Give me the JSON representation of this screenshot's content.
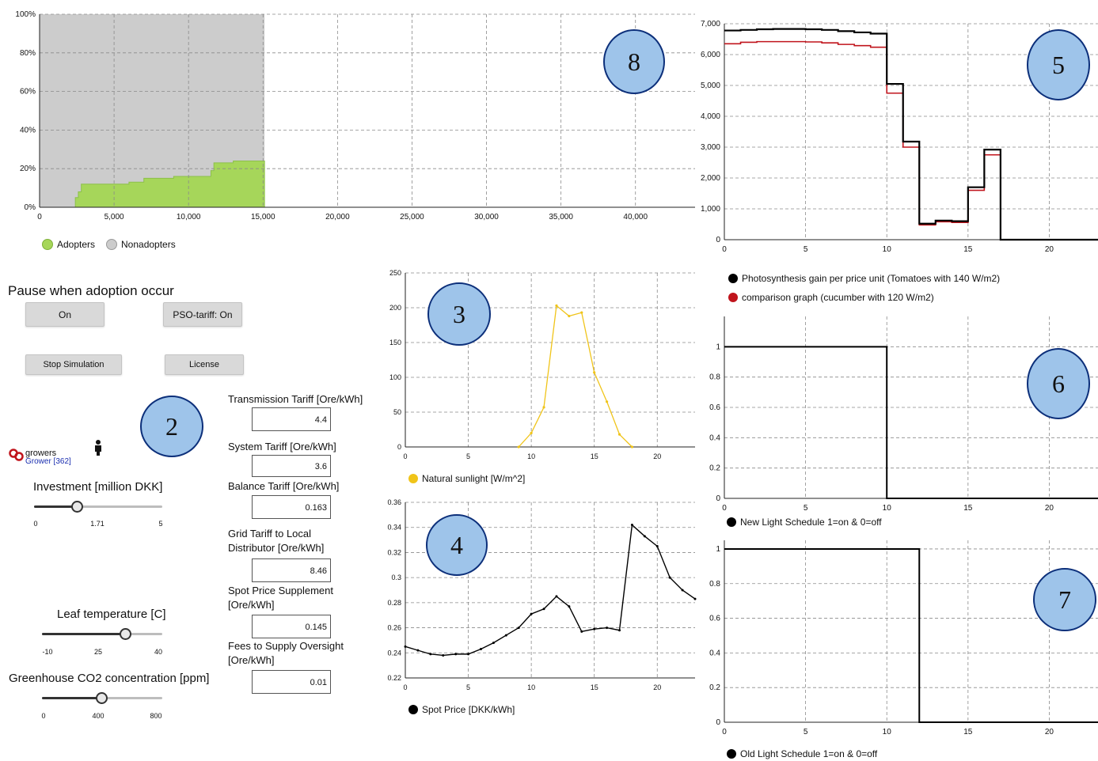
{
  "controls": {
    "pause_label": "Pause when adoption occur",
    "on_button": "On",
    "pso_button": "PSO-tariff: On",
    "stop_button": "Stop Simulation",
    "license_button": "License",
    "growers_label": "growers",
    "grower_label": "Grower [362]"
  },
  "sliders": {
    "investment": {
      "title": "Investment [million DKK]",
      "min": "0",
      "value": "1.71",
      "max": "5",
      "fraction": 0.342
    },
    "leaf": {
      "title": "Leaf temperature [C]",
      "min": "-10",
      "mid": "25",
      "max": "40",
      "fraction": 0.7
    },
    "co2": {
      "title": "Greenhouse CO2 concentration [ppm]",
      "min": "0",
      "mid": "400",
      "max": "800",
      "fraction": 0.5
    }
  },
  "fields": [
    {
      "label": "Transmission Tariff [Ore/kWh]",
      "value": "4.4"
    },
    {
      "label": "System Tariff [Ore/kWh]",
      "value": "3.6"
    },
    {
      "label": "Balance Tariff [Ore/kWh]",
      "value": "0.163"
    },
    {
      "label": "Grid Tariff to Local Distributor [Ore/kWh]",
      "value": "8.46"
    },
    {
      "label": "Spot Price Supplement [Ore/kWh]",
      "value": "0.145"
    },
    {
      "label": "Fees to Supply Oversight [Ore/kWh]",
      "value": "0.01"
    }
  ],
  "markers": [
    "8",
    "5",
    "3",
    "2",
    "6",
    "4",
    "7"
  ],
  "colors": {
    "adopters": "#a6d65a",
    "nonadopters": "#cccccc",
    "sunlight": "#f0c419",
    "red": "#c0141c",
    "bubble": "#9ec4ea",
    "bubble_border": "#0c2f7a"
  },
  "chart_data": [
    {
      "id": "adoption",
      "type": "area",
      "x_ticks": [
        "0",
        "5,000",
        "10,000",
        "15,000",
        "20,000",
        "25,000",
        "30,000",
        "35,000",
        "40,000"
      ],
      "y_ticks": [
        "0%",
        "20%",
        "40%",
        "60%",
        "80%",
        "100%"
      ],
      "xlim": [
        0,
        44000
      ],
      "ylim": [
        0,
        100
      ],
      "grid": true,
      "legend": [
        {
          "name": "Adopters",
          "color": "#a6d65a"
        },
        {
          "name": "Nonadopters",
          "color": "#cccccc"
        }
      ],
      "adopters_x": [
        2400,
        2600,
        2800,
        5000,
        6000,
        6200,
        7000,
        8500,
        9000,
        10000,
        11000,
        11500,
        11700,
        13000,
        15100
      ],
      "adopters_y": [
        5,
        8,
        12,
        12,
        13,
        13,
        15,
        15,
        16,
        16,
        16,
        19,
        23,
        24,
        24
      ],
      "nonadopters_end_x": 15100
    },
    {
      "id": "photosynthesis",
      "type": "line",
      "x_ticks": [
        "0",
        "5",
        "10",
        "15",
        "20"
      ],
      "y_ticks": [
        "0",
        "1,000",
        "2,000",
        "3,000",
        "4,000",
        "5,000",
        "6,000",
        "7,000"
      ],
      "xlim": [
        0,
        23
      ],
      "ylim": [
        0,
        7000
      ],
      "grid": true,
      "series": [
        {
          "name": "Photosynthesis gain per price unit (Tomatoes with 140 W/m2)",
          "color": "#000000",
          "x": [
            0,
            1,
            2,
            3,
            4,
            5,
            6,
            7,
            8,
            9,
            10,
            11,
            12,
            13,
            14,
            15,
            16,
            17,
            23
          ],
          "values": [
            6780,
            6800,
            6820,
            6830,
            6830,
            6820,
            6800,
            6760,
            6720,
            6680,
            5050,
            3180,
            520,
            620,
            600,
            1700,
            2920,
            0,
            0
          ]
        },
        {
          "name": "comparison graph (cucumber with 120 W/m2)",
          "color": "#c0141c",
          "x": [
            0,
            1,
            2,
            3,
            4,
            5,
            6,
            7,
            8,
            9,
            10,
            11,
            12,
            13,
            14,
            15,
            16,
            17,
            23
          ],
          "values": [
            6350,
            6400,
            6420,
            6420,
            6420,
            6410,
            6380,
            6330,
            6290,
            6240,
            4750,
            3000,
            480,
            580,
            560,
            1600,
            2750,
            0,
            0
          ]
        }
      ]
    },
    {
      "id": "sunlight",
      "type": "line",
      "x_ticks": [
        "0",
        "5",
        "10",
        "15",
        "20"
      ],
      "y_ticks": [
        "0",
        "50",
        "100",
        "150",
        "200",
        "250"
      ],
      "xlim": [
        0,
        23
      ],
      "ylim": [
        0,
        250
      ],
      "grid": true,
      "series": [
        {
          "name": "Natural sunlight [W/m^2]",
          "color": "#f0c419",
          "x": [
            9,
            10,
            11,
            12,
            13,
            14,
            15,
            16,
            17,
            18
          ],
          "values": [
            0,
            20,
            57,
            203,
            188,
            193,
            107,
            65,
            18,
            0
          ]
        }
      ]
    },
    {
      "id": "spotprice",
      "type": "line",
      "x_ticks": [
        "0",
        "5",
        "10",
        "15",
        "20"
      ],
      "y_ticks": [
        "0.22",
        "0.24",
        "0.26",
        "0.28",
        "0.3",
        "0.32",
        "0.34",
        "0.36"
      ],
      "xlim": [
        0,
        23
      ],
      "ylim": [
        0.22,
        0.36
      ],
      "grid": true,
      "series": [
        {
          "name": "Spot Price [DKK/kWh]",
          "color": "#000000",
          "x": [
            0,
            1,
            2,
            3,
            4,
            5,
            6,
            7,
            8,
            9,
            10,
            11,
            12,
            13,
            14,
            15,
            16,
            17,
            18,
            19,
            20,
            21,
            22,
            23
          ],
          "values": [
            0.245,
            0.242,
            0.239,
            0.238,
            0.239,
            0.239,
            0.243,
            0.248,
            0.254,
            0.26,
            0.271,
            0.275,
            0.285,
            0.277,
            0.257,
            0.259,
            0.26,
            0.258,
            0.342,
            0.333,
            0.325,
            0.3,
            0.29,
            0.283
          ]
        }
      ]
    },
    {
      "id": "newschedule",
      "type": "line",
      "x_ticks": [
        "0",
        "5",
        "10",
        "15",
        "20"
      ],
      "y_ticks": [
        "0",
        "0.2",
        "0.4",
        "0.6",
        "0.8",
        "1"
      ],
      "xlim": [
        0,
        23
      ],
      "ylim": [
        0,
        1.2
      ],
      "grid": true,
      "series": [
        {
          "name": "New Light Schedule 1=on & 0=off",
          "color": "#000000",
          "x": [
            0,
            10,
            10,
            23
          ],
          "values": [
            1,
            1,
            0,
            0
          ]
        }
      ]
    },
    {
      "id": "oldschedule",
      "type": "line",
      "x_ticks": [
        "0",
        "5",
        "10",
        "15",
        "20"
      ],
      "y_ticks": [
        "0",
        "0.2",
        "0.4",
        "0.6",
        "0.8",
        "1"
      ],
      "xlim": [
        0,
        23
      ],
      "ylim": [
        0,
        1.05
      ],
      "grid": true,
      "series": [
        {
          "name": "Old Light Schedule 1=on & 0=off",
          "color": "#000000",
          "x": [
            0,
            12,
            12,
            23
          ],
          "values": [
            1,
            1,
            0,
            0
          ]
        }
      ]
    }
  ]
}
